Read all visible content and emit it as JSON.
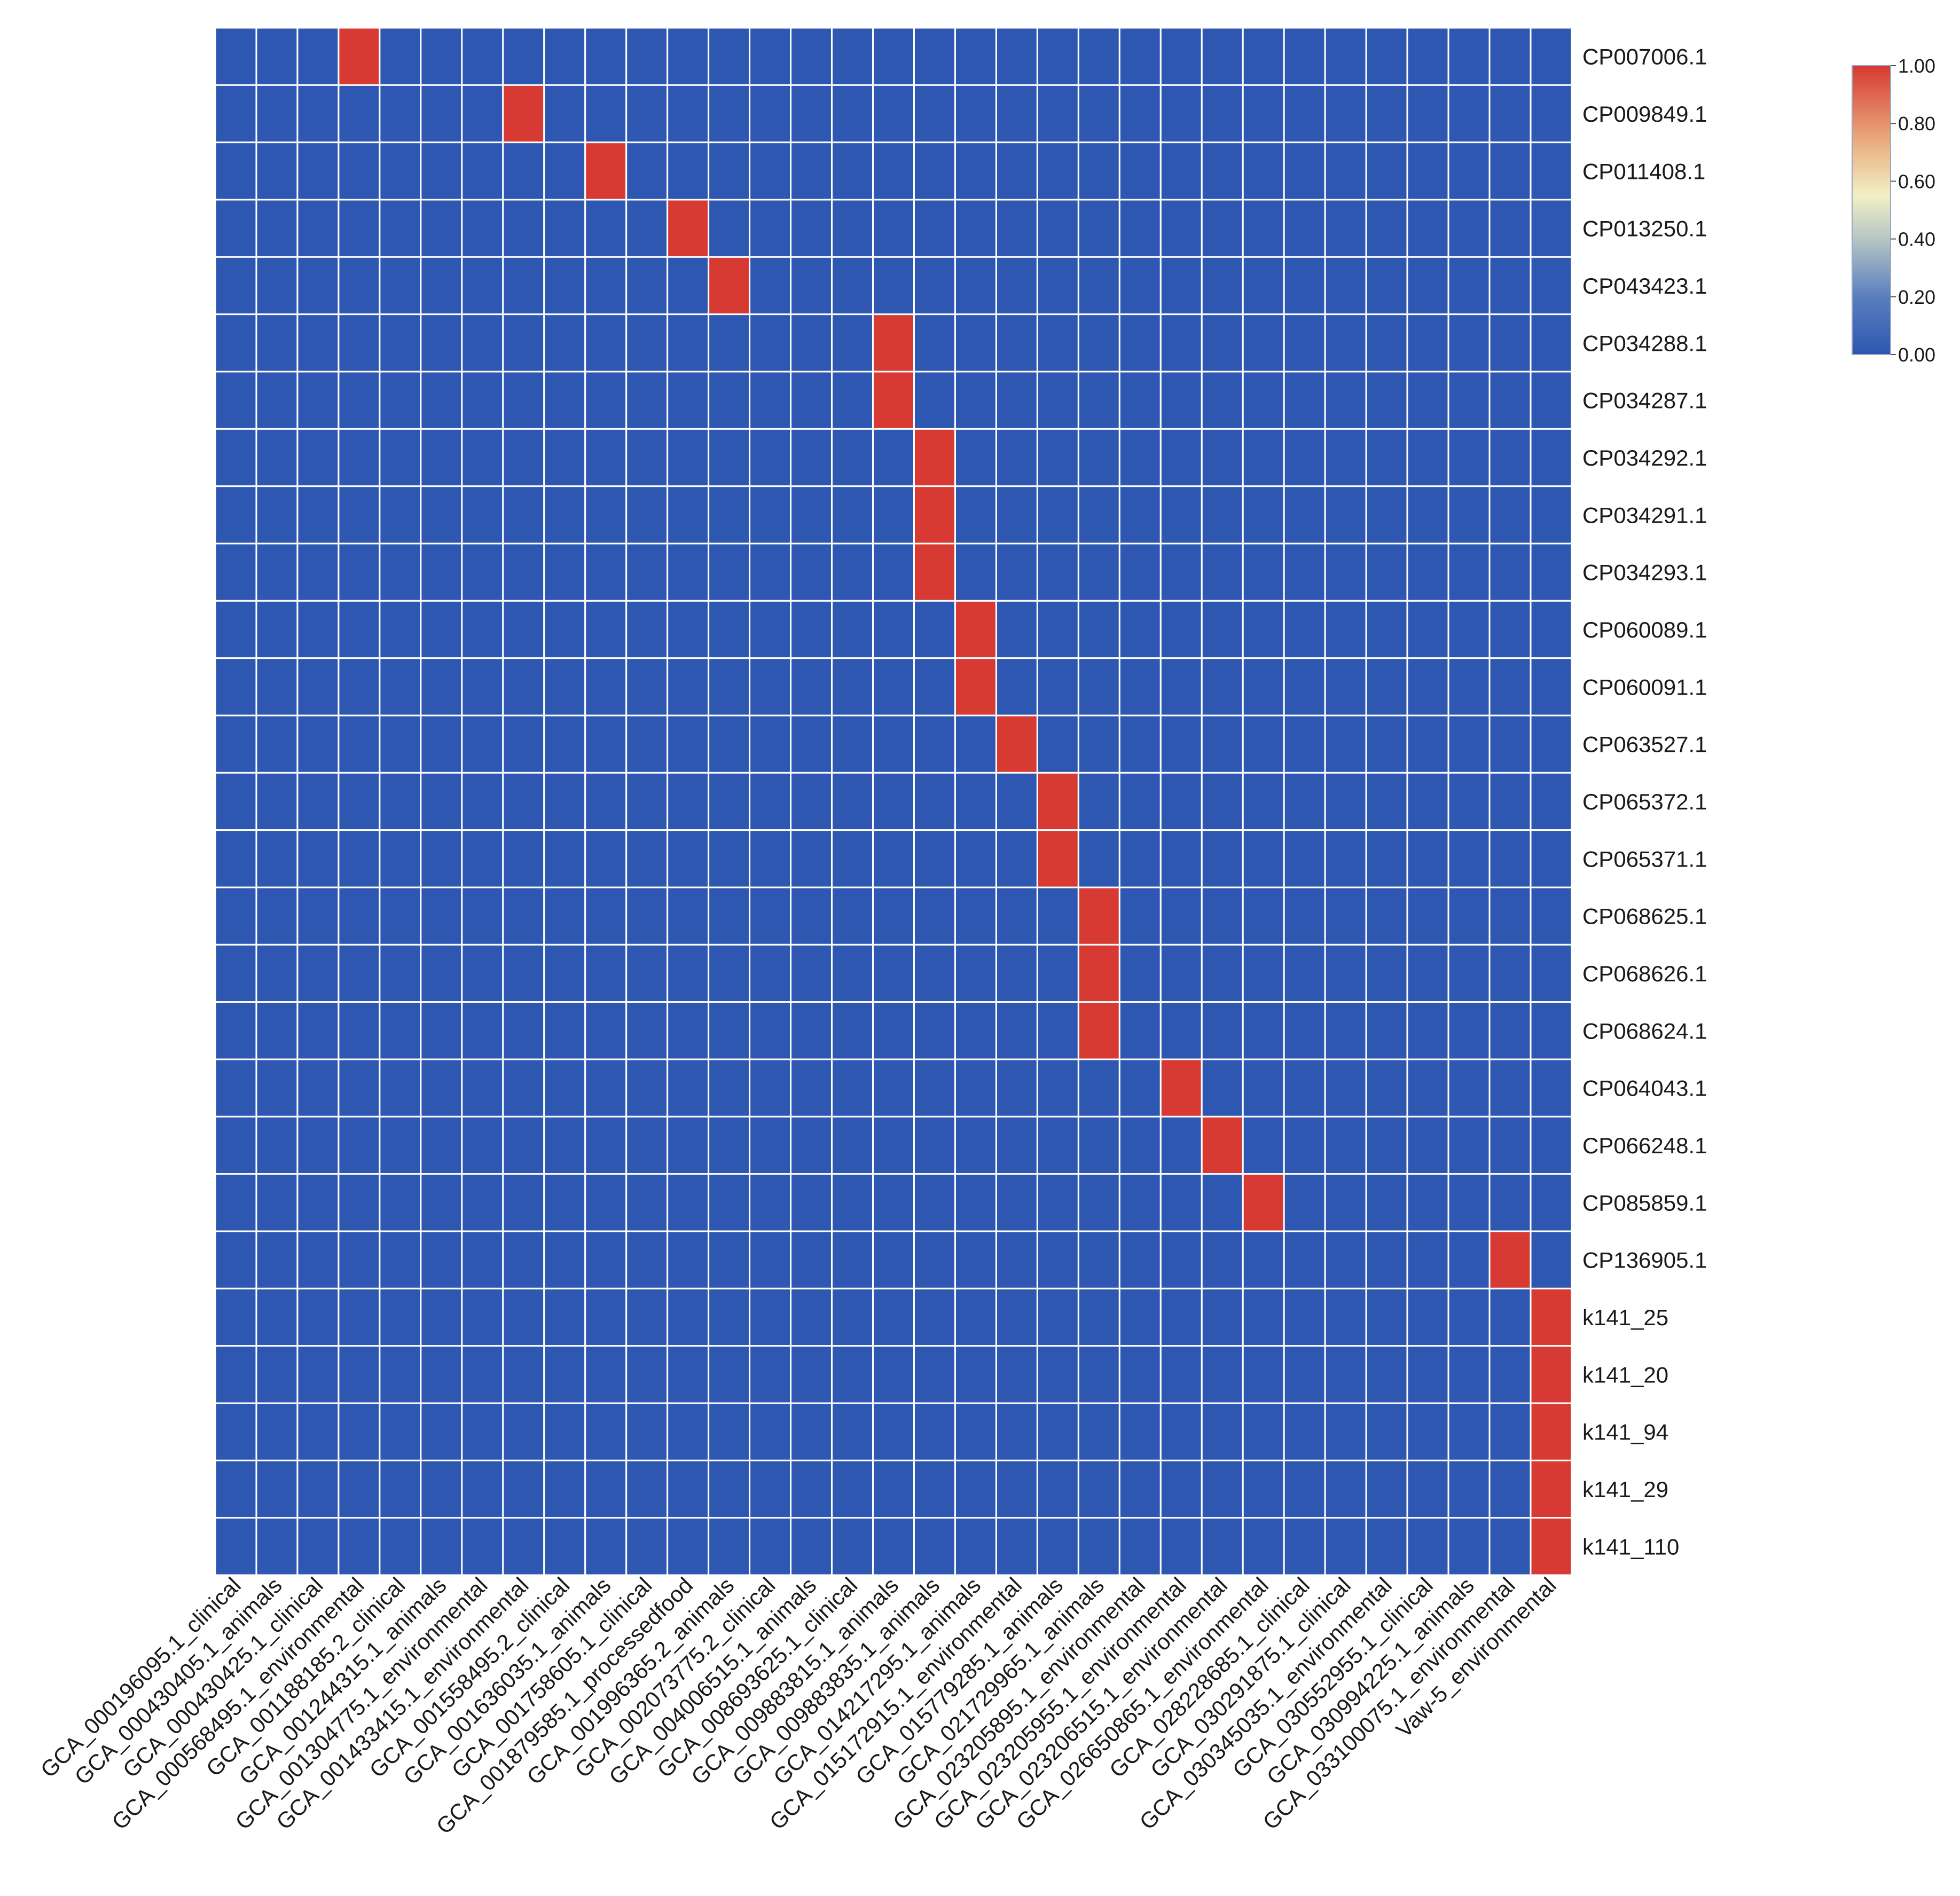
{
  "chart_data": {
    "type": "heatmap",
    "title": "",
    "xlabel": "",
    "ylabel": "",
    "columns": [
      "GCA_000196095.1_clinical",
      "GCA_000430405.1_animals",
      "GCA_000430425.1_clinical",
      "GCA_000568495.1_environmental",
      "GCA_001188185.2_clinical",
      "GCA_001244315.1_animals",
      "GCA_001304775.1_environmental",
      "GCA_001433415.1_environmental",
      "GCA_001558495.2_clinical",
      "GCA_001636035.1_animals",
      "GCA_001758605.1_clinical",
      "GCA_001879585.1_processedfood",
      "GCA_001996365.2_animals",
      "GCA_002073775.2_clinical",
      "GCA_004006515.1_animals",
      "GCA_008693625.1_clinical",
      "GCA_009883815.1_animals",
      "GCA_009883835.1_animals",
      "GCA_014217295.1_animals",
      "GCA_015172915.1_environmental",
      "GCA_015779285.1_animals",
      "GCA_021729965.1_animals",
      "GCA_023205895.1_environmental",
      "GCA_023205955.1_environmental",
      "GCA_023206515.1_environmental",
      "GCA_026650865.1_environmental",
      "GCA_028228685.1_clinical",
      "GCA_030291875.1_clinical",
      "GCA_030345035.1_environmental",
      "GCA_030552955.1_clinical",
      "GCA_030994225.1_animals",
      "GCA_033100075.1_environmental",
      "Vaw-5_environmental"
    ],
    "rows": [
      "CP007006.1",
      "CP009849.1",
      "CP011408.1",
      "CP013250.1",
      "CP043423.1",
      "CP034288.1",
      "CP034287.1",
      "CP034292.1",
      "CP034291.1",
      "CP034293.1",
      "CP060089.1",
      "CP060091.1",
      "CP063527.1",
      "CP065372.1",
      "CP065371.1",
      "CP068625.1",
      "CP068626.1",
      "CP068624.1",
      "CP064043.1",
      "CP066248.1",
      "CP085859.1",
      "CP136905.1",
      "k141_25",
      "k141_20",
      "k141_94",
      "k141_29",
      "k141_110"
    ],
    "values": [
      [
        0,
        0,
        0,
        1,
        0,
        0,
        0,
        0,
        0,
        0,
        0,
        0,
        0,
        0,
        0,
        0,
        0,
        0,
        0,
        0,
        0,
        0,
        0,
        0,
        0,
        0,
        0,
        0,
        0,
        0,
        0,
        0,
        0
      ],
      [
        0,
        0,
        0,
        0,
        0,
        0,
        0,
        1,
        0,
        0,
        0,
        0,
        0,
        0,
        0,
        0,
        0,
        0,
        0,
        0,
        0,
        0,
        0,
        0,
        0,
        0,
        0,
        0,
        0,
        0,
        0,
        0,
        0
      ],
      [
        0,
        0,
        0,
        0,
        0,
        0,
        0,
        0,
        0,
        1,
        0,
        0,
        0,
        0,
        0,
        0,
        0,
        0,
        0,
        0,
        0,
        0,
        0,
        0,
        0,
        0,
        0,
        0,
        0,
        0,
        0,
        0,
        0
      ],
      [
        0,
        0,
        0,
        0,
        0,
        0,
        0,
        0,
        0,
        0,
        0,
        1,
        0,
        0,
        0,
        0,
        0,
        0,
        0,
        0,
        0,
        0,
        0,
        0,
        0,
        0,
        0,
        0,
        0,
        0,
        0,
        0,
        0
      ],
      [
        0,
        0,
        0,
        0,
        0,
        0,
        0,
        0,
        0,
        0,
        0,
        0,
        1,
        0,
        0,
        0,
        0,
        0,
        0,
        0,
        0,
        0,
        0,
        0,
        0,
        0,
        0,
        0,
        0,
        0,
        0,
        0,
        0
      ],
      [
        0,
        0,
        0,
        0,
        0,
        0,
        0,
        0,
        0,
        0,
        0,
        0,
        0,
        0,
        0,
        0,
        1,
        0,
        0,
        0,
        0,
        0,
        0,
        0,
        0,
        0,
        0,
        0,
        0,
        0,
        0,
        0,
        0
      ],
      [
        0,
        0,
        0,
        0,
        0,
        0,
        0,
        0,
        0,
        0,
        0,
        0,
        0,
        0,
        0,
        0,
        1,
        0,
        0,
        0,
        0,
        0,
        0,
        0,
        0,
        0,
        0,
        0,
        0,
        0,
        0,
        0,
        0
      ],
      [
        0,
        0,
        0,
        0,
        0,
        0,
        0,
        0,
        0,
        0,
        0,
        0,
        0,
        0,
        0,
        0,
        0,
        1,
        0,
        0,
        0,
        0,
        0,
        0,
        0,
        0,
        0,
        0,
        0,
        0,
        0,
        0,
        0
      ],
      [
        0,
        0,
        0,
        0,
        0,
        0,
        0,
        0,
        0,
        0,
        0,
        0,
        0,
        0,
        0,
        0,
        0,
        1,
        0,
        0,
        0,
        0,
        0,
        0,
        0,
        0,
        0,
        0,
        0,
        0,
        0,
        0,
        0
      ],
      [
        0,
        0,
        0,
        0,
        0,
        0,
        0,
        0,
        0,
        0,
        0,
        0,
        0,
        0,
        0,
        0,
        0,
        1,
        0,
        0,
        0,
        0,
        0,
        0,
        0,
        0,
        0,
        0,
        0,
        0,
        0,
        0,
        0
      ],
      [
        0,
        0,
        0,
        0,
        0,
        0,
        0,
        0,
        0,
        0,
        0,
        0,
        0,
        0,
        0,
        0,
        0,
        0,
        1,
        0,
        0,
        0,
        0,
        0,
        0,
        0,
        0,
        0,
        0,
        0,
        0,
        0,
        0
      ],
      [
        0,
        0,
        0,
        0,
        0,
        0,
        0,
        0,
        0,
        0,
        0,
        0,
        0,
        0,
        0,
        0,
        0,
        0,
        1,
        0,
        0,
        0,
        0,
        0,
        0,
        0,
        0,
        0,
        0,
        0,
        0,
        0,
        0
      ],
      [
        0,
        0,
        0,
        0,
        0,
        0,
        0,
        0,
        0,
        0,
        0,
        0,
        0,
        0,
        0,
        0,
        0,
        0,
        0,
        1,
        0,
        0,
        0,
        0,
        0,
        0,
        0,
        0,
        0,
        0,
        0,
        0,
        0
      ],
      [
        0,
        0,
        0,
        0,
        0,
        0,
        0,
        0,
        0,
        0,
        0,
        0,
        0,
        0,
        0,
        0,
        0,
        0,
        0,
        0,
        1,
        0,
        0,
        0,
        0,
        0,
        0,
        0,
        0,
        0,
        0,
        0,
        0
      ],
      [
        0,
        0,
        0,
        0,
        0,
        0,
        0,
        0,
        0,
        0,
        0,
        0,
        0,
        0,
        0,
        0,
        0,
        0,
        0,
        0,
        1,
        0,
        0,
        0,
        0,
        0,
        0,
        0,
        0,
        0,
        0,
        0,
        0
      ],
      [
        0,
        0,
        0,
        0,
        0,
        0,
        0,
        0,
        0,
        0,
        0,
        0,
        0,
        0,
        0,
        0,
        0,
        0,
        0,
        0,
        0,
        1,
        0,
        0,
        0,
        0,
        0,
        0,
        0,
        0,
        0,
        0,
        0
      ],
      [
        0,
        0,
        0,
        0,
        0,
        0,
        0,
        0,
        0,
        0,
        0,
        0,
        0,
        0,
        0,
        0,
        0,
        0,
        0,
        0,
        0,
        1,
        0,
        0,
        0,
        0,
        0,
        0,
        0,
        0,
        0,
        0,
        0
      ],
      [
        0,
        0,
        0,
        0,
        0,
        0,
        0,
        0,
        0,
        0,
        0,
        0,
        0,
        0,
        0,
        0,
        0,
        0,
        0,
        0,
        0,
        1,
        0,
        0,
        0,
        0,
        0,
        0,
        0,
        0,
        0,
        0,
        0
      ],
      [
        0,
        0,
        0,
        0,
        0,
        0,
        0,
        0,
        0,
        0,
        0,
        0,
        0,
        0,
        0,
        0,
        0,
        0,
        0,
        0,
        0,
        0,
        0,
        1,
        0,
        0,
        0,
        0,
        0,
        0,
        0,
        0,
        0
      ],
      [
        0,
        0,
        0,
        0,
        0,
        0,
        0,
        0,
        0,
        0,
        0,
        0,
        0,
        0,
        0,
        0,
        0,
        0,
        0,
        0,
        0,
        0,
        0,
        0,
        1,
        0,
        0,
        0,
        0,
        0,
        0,
        0,
        0
      ],
      [
        0,
        0,
        0,
        0,
        0,
        0,
        0,
        0,
        0,
        0,
        0,
        0,
        0,
        0,
        0,
        0,
        0,
        0,
        0,
        0,
        0,
        0,
        0,
        0,
        0,
        1,
        0,
        0,
        0,
        0,
        0,
        0,
        0
      ],
      [
        0,
        0,
        0,
        0,
        0,
        0,
        0,
        0,
        0,
        0,
        0,
        0,
        0,
        0,
        0,
        0,
        0,
        0,
        0,
        0,
        0,
        0,
        0,
        0,
        0,
        0,
        0,
        0,
        0,
        0,
        0,
        1,
        0
      ],
      [
        0,
        0,
        0,
        0,
        0,
        0,
        0,
        0,
        0,
        0,
        0,
        0,
        0,
        0,
        0,
        0,
        0,
        0,
        0,
        0,
        0,
        0,
        0,
        0,
        0,
        0,
        0,
        0,
        0,
        0,
        0,
        0,
        1
      ],
      [
        0,
        0,
        0,
        0,
        0,
        0,
        0,
        0,
        0,
        0,
        0,
        0,
        0,
        0,
        0,
        0,
        0,
        0,
        0,
        0,
        0,
        0,
        0,
        0,
        0,
        0,
        0,
        0,
        0,
        0,
        0,
        0,
        1
      ],
      [
        0,
        0,
        0,
        0,
        0,
        0,
        0,
        0,
        0,
        0,
        0,
        0,
        0,
        0,
        0,
        0,
        0,
        0,
        0,
        0,
        0,
        0,
        0,
        0,
        0,
        0,
        0,
        0,
        0,
        0,
        0,
        0,
        1
      ],
      [
        0,
        0,
        0,
        0,
        0,
        0,
        0,
        0,
        0,
        0,
        0,
        0,
        0,
        0,
        0,
        0,
        0,
        0,
        0,
        0,
        0,
        0,
        0,
        0,
        0,
        0,
        0,
        0,
        0,
        0,
        0,
        0,
        1
      ],
      [
        0,
        0,
        0,
        0,
        0,
        0,
        0,
        0,
        0,
        0,
        0,
        0,
        0,
        0,
        0,
        0,
        0,
        0,
        0,
        0,
        0,
        0,
        0,
        0,
        0,
        0,
        0,
        0,
        0,
        0,
        0,
        0,
        1
      ]
    ],
    "value_range": [
      0,
      1
    ],
    "colorbar": {
      "ticks": [
        1.0,
        0.8,
        0.6,
        0.4,
        0.2,
        0.0
      ],
      "tick_labels": [
        "1.00",
        "0.80",
        "0.60",
        "0.40",
        "0.20",
        "0.00"
      ],
      "placement": "top-right"
    },
    "colors": {
      "low": "#2d57b0",
      "mid": "#f2f0c4",
      "high": "#d63a32",
      "gridline": "#ffffff"
    },
    "grid": true
  }
}
